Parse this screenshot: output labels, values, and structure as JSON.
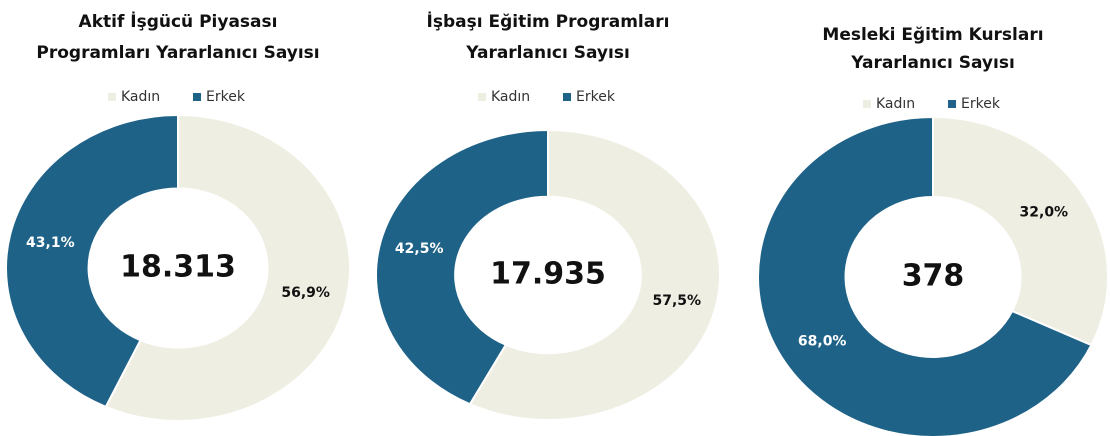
{
  "chart_data": [
    {
      "type": "pie",
      "title": [
        "Aktif İşgücü Piyasası",
        "Programları Yararlanıcı Sayısı"
      ],
      "categories": [
        "Kadın",
        "Erkek"
      ],
      "values": [
        56.9,
        43.1
      ],
      "value_labels": [
        "56,9%",
        "43,1%"
      ],
      "colors": [
        "#efeee2",
        "#1f6288"
      ],
      "center_label": "18.313",
      "legend": "top"
    },
    {
      "type": "pie",
      "title": [
        "İşbaşı Eğitim Programları",
        "Yararlanıcı Sayısı"
      ],
      "categories": [
        "Kadın",
        "Erkek"
      ],
      "values": [
        57.5,
        42.5
      ],
      "value_labels": [
        "57,5%",
        "42,5%"
      ],
      "colors": [
        "#efeee2",
        "#1f6288"
      ],
      "center_label": "17.935",
      "legend": "top"
    },
    {
      "type": "pie",
      "title": [
        "Mesleki Eğitim Kursları",
        "Yararlanıcı Sayısı"
      ],
      "categories": [
        "Kadın",
        "Erkek"
      ],
      "values": [
        32.0,
        68.0
      ],
      "value_labels": [
        "32,0%",
        "68,0%"
      ],
      "colors": [
        "#efeee2",
        "#1f6288"
      ],
      "center_label": "378",
      "legend": "top"
    }
  ]
}
